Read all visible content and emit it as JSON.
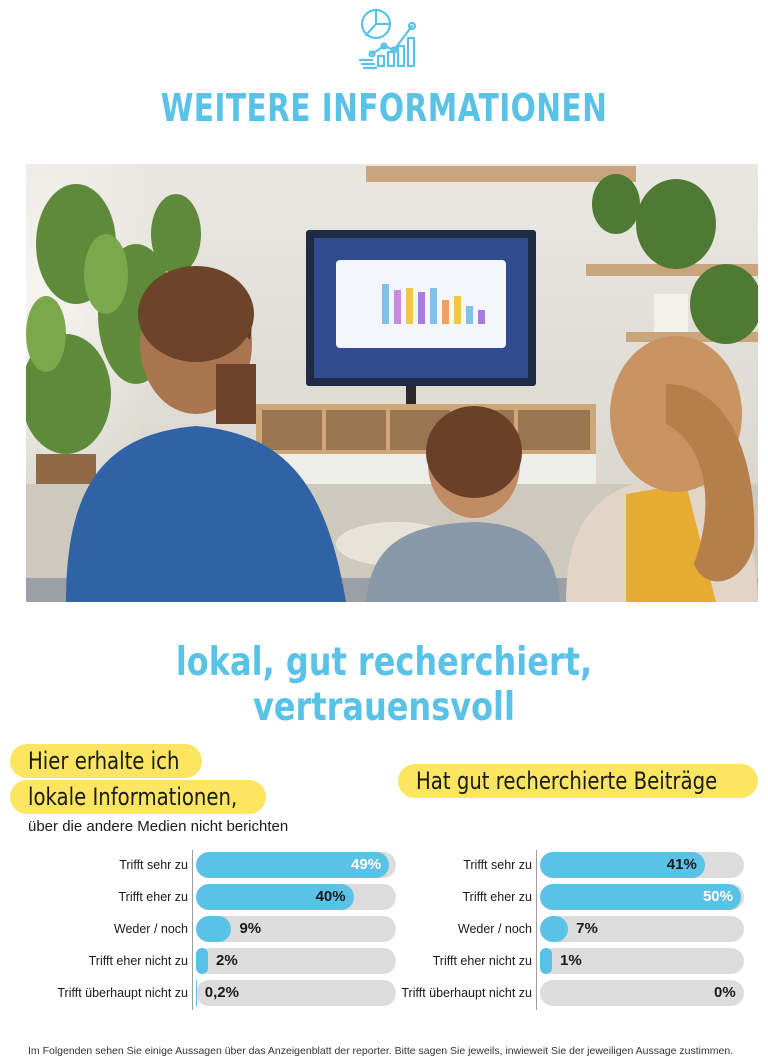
{
  "header": {
    "title": "WEITERE INFORMATIONEN",
    "icon": "analytics-chart-icon",
    "accent_color": "#5bc2e7"
  },
  "photo": {
    "description_icon": "family-watching-tv-photo"
  },
  "subtitle": "lokal, gut recherchiert, vertrauensvoll",
  "highlight_color": "#fce560",
  "chart_data": [
    {
      "type": "bar",
      "orientation": "horizontal",
      "title_lines": [
        "Hier erhalte ich",
        "lokale Informationen,"
      ],
      "subtitle": "über die andere Medien nicht berichten",
      "categories": [
        "Trifft sehr zu",
        "Trifft eher zu",
        "Weder / noch",
        "Trifft eher nicht zu",
        "Trifft überhaupt nicht zu"
      ],
      "values": [
        49,
        40,
        9,
        2,
        0.2
      ],
      "value_labels": [
        "49%",
        "40%",
        "9%",
        "2%",
        "0,2%"
      ],
      "xlim": [
        0,
        100
      ],
      "bar_color": "#5bc2e7",
      "track_color": "#dcdcdc"
    },
    {
      "type": "bar",
      "orientation": "horizontal",
      "title_lines": [
        "Hat gut recherchierte Beiträge"
      ],
      "categories": [
        "Trifft sehr zu",
        "Trifft eher zu",
        "Weder / noch",
        "Trifft eher nicht zu",
        "Trifft überhaupt nicht zu"
      ],
      "values": [
        41,
        50,
        7,
        1,
        0
      ],
      "value_labels": [
        "41%",
        "50%",
        "7%",
        "1%",
        "0%"
      ],
      "xlim": [
        0,
        100
      ],
      "bar_color": "#5bc2e7",
      "track_color": "#dcdcdc"
    }
  ],
  "footnote": "Im Folgenden sehen Sie einige Aussagen über das Anzeigenblatt der reporter. Bitte sagen Sie jeweils, inwieweit Sie der jeweiligen Aussage zustimmen."
}
